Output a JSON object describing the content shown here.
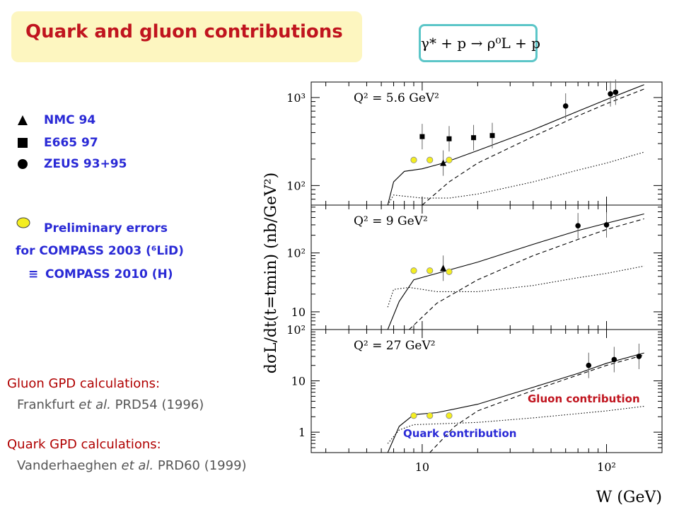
{
  "slide": {
    "title": "Quark and gluon contributions",
    "reaction_formula": "γ* + p → ρ⁰L + p"
  },
  "legend": [
    {
      "symbol": "triangle",
      "label": "NMC 94"
    },
    {
      "symbol": "square",
      "label": "E665 97"
    },
    {
      "symbol": "circle",
      "label": "ZEUS 93+95"
    }
  ],
  "compass": {
    "preliminary_label": "Preliminary errors",
    "compass2003_label": "for COMPASS 2003 (⁶LiD)",
    "equiv_symbol": "≡",
    "compass2010_label": "COMPASS 2010 (H)",
    "marker_color": "#f4ee20"
  },
  "calculations": {
    "gluon_heading": "Gluon GPD calculations:",
    "gluon_ref_author": "Frankfurt",
    "gluon_ref_etal": "et al.",
    "gluon_ref_journal": "PRD54 (1996)",
    "quark_heading": "Quark GPD calculations:",
    "quark_ref_author": "Vanderhaeghen",
    "quark_ref_etal": "et al.",
    "quark_ref_journal": "PRD60 (1999)"
  },
  "colors": {
    "title": "#c0141e",
    "title_bg": "#fdf6c0",
    "legend_text": "#2a2ad6",
    "reaction_border": "#5cc6c8",
    "annotation": "#c0141e"
  },
  "chart_data": {
    "type": "scatter",
    "xlabel": "W (GeV)",
    "ylabel": "dσL/dt(t=tmin) (nb/GeV²)",
    "x_log": true,
    "y_log": true,
    "x_tick_labels": [
      "10",
      "10²"
    ],
    "annotations": [
      "Gluon contribution",
      "Quark contribution"
    ],
    "series_styles": {
      "total": "solid",
      "gluon": "dashed",
      "quark": "dotted"
    },
    "panels": [
      {
        "label": "Q² = 5.6 GeV²",
        "y_tick_labels": [
          "10²",
          "10³"
        ],
        "ylim": [
          60,
          1500
        ],
        "points": [
          {
            "set": "NMC 94",
            "marker": "triangle",
            "x": 13,
            "y": 180
          },
          {
            "set": "E665 97",
            "marker": "square",
            "x": 10,
            "y": 360
          },
          {
            "set": "E665 97",
            "marker": "square",
            "x": 14,
            "y": 340
          },
          {
            "set": "E665 97",
            "marker": "square",
            "x": 19,
            "y": 350
          },
          {
            "set": "E665 97",
            "marker": "square",
            "x": 24,
            "y": 370
          },
          {
            "set": "ZEUS 93+95",
            "marker": "circle",
            "x": 60,
            "y": 800
          },
          {
            "set": "ZEUS 93+95",
            "marker": "circle",
            "x": 105,
            "y": 1100
          },
          {
            "set": "ZEUS 93+95",
            "marker": "circle",
            "x": 112,
            "y": 1150
          },
          {
            "set": "COMPASS",
            "marker": "open-circle",
            "x": 9,
            "y": 195
          },
          {
            "set": "COMPASS",
            "marker": "open-circle",
            "x": 11,
            "y": 195
          },
          {
            "set": "COMPASS",
            "marker": "open-circle",
            "x": 14,
            "y": 195
          }
        ],
        "curves": {
          "total": [
            [
              6.5,
              60
            ],
            [
              7,
              110
            ],
            [
              8,
              145
            ],
            [
              10,
              155
            ],
            [
              13,
              180
            ],
            [
              20,
              250
            ],
            [
              40,
              430
            ],
            [
              70,
              700
            ],
            [
              100,
              950
            ],
            [
              160,
              1400
            ]
          ],
          "gluon": [
            [
              10,
              60
            ],
            [
              14,
              110
            ],
            [
              20,
              180
            ],
            [
              40,
              360
            ],
            [
              70,
              620
            ],
            [
              100,
              850
            ],
            [
              160,
              1250
            ]
          ],
          "quark": [
            [
              6.5,
              60
            ],
            [
              7,
              78
            ],
            [
              10,
              72
            ],
            [
              14,
              72
            ],
            [
              20,
              80
            ],
            [
              40,
              110
            ],
            [
              70,
              150
            ],
            [
              100,
              180
            ],
            [
              160,
              240
            ]
          ]
        }
      },
      {
        "label": "Q² = 9 GeV²",
        "y_tick_labels": [
          "10",
          "10²"
        ],
        "ylim": [
          5,
          650
        ],
        "points": [
          {
            "set": "NMC 94",
            "marker": "triangle",
            "x": 13,
            "y": 55
          },
          {
            "set": "ZEUS 93+95",
            "marker": "circle",
            "x": 70,
            "y": 290
          },
          {
            "set": "ZEUS 93+95",
            "marker": "circle",
            "x": 100,
            "y": 300
          },
          {
            "set": "COMPASS",
            "marker": "open-circle",
            "x": 9,
            "y": 50
          },
          {
            "set": "COMPASS",
            "marker": "open-circle",
            "x": 11,
            "y": 50
          },
          {
            "set": "COMPASS",
            "marker": "open-circle",
            "x": 14,
            "y": 48
          }
        ],
        "curves": {
          "total": [
            [
              6.5,
              5
            ],
            [
              7.5,
              15
            ],
            [
              9,
              35
            ],
            [
              12,
              45
            ],
            [
              20,
              70
            ],
            [
              40,
              140
            ],
            [
              70,
              240
            ],
            [
              100,
              320
            ],
            [
              160,
              460
            ]
          ],
          "gluon": [
            [
              8.5,
              5
            ],
            [
              12,
              14
            ],
            [
              20,
              35
            ],
            [
              40,
              90
            ],
            [
              70,
              170
            ],
            [
              100,
              250
            ],
            [
              160,
              380
            ]
          ],
          "quark": [
            [
              6.5,
              12
            ],
            [
              7,
              24
            ],
            [
              8.5,
              26
            ],
            [
              12,
              22
            ],
            [
              20,
              22
            ],
            [
              40,
              28
            ],
            [
              70,
              38
            ],
            [
              100,
              45
            ],
            [
              160,
              60
            ]
          ]
        }
      },
      {
        "label": "Q² = 27 GeV²",
        "y_tick_labels": [
          "1",
          "10",
          "10²"
        ],
        "ylim": [
          0.4,
          100
        ],
        "points": [
          {
            "set": "ZEUS 93+95",
            "marker": "circle",
            "x": 80,
            "y": 20
          },
          {
            "set": "ZEUS 93+95",
            "marker": "circle",
            "x": 110,
            "y": 26
          },
          {
            "set": "ZEUS 93+95",
            "marker": "circle",
            "x": 150,
            "y": 30
          },
          {
            "set": "COMPASS",
            "marker": "open-circle",
            "x": 9,
            "y": 2.1
          },
          {
            "set": "COMPASS",
            "marker": "open-circle",
            "x": 11,
            "y": 2.1
          },
          {
            "set": "COMPASS",
            "marker": "open-circle",
            "x": 14,
            "y": 2.1
          }
        ],
        "curves": {
          "total": [
            [
              6.5,
              0.4
            ],
            [
              7.5,
              1.3
            ],
            [
              9,
              2.2
            ],
            [
              12,
              2.4
            ],
            [
              20,
              3.5
            ],
            [
              40,
              7.5
            ],
            [
              70,
              14
            ],
            [
              100,
              22
            ],
            [
              160,
              35
            ]
          ],
          "gluon": [
            [
              11,
              0.4
            ],
            [
              15,
              1.3
            ],
            [
              20,
              2.6
            ],
            [
              40,
              6.5
            ],
            [
              70,
              13
            ],
            [
              100,
              20
            ],
            [
              160,
              32
            ]
          ],
          "quark": [
            [
              6.5,
              0.6
            ],
            [
              7.5,
              1.1
            ],
            [
              9,
              1.4
            ],
            [
              12,
              1.45
            ],
            [
              20,
              1.55
            ],
            [
              40,
              1.9
            ],
            [
              70,
              2.3
            ],
            [
              100,
              2.6
            ],
            [
              160,
              3.2
            ]
          ]
        }
      }
    ]
  }
}
